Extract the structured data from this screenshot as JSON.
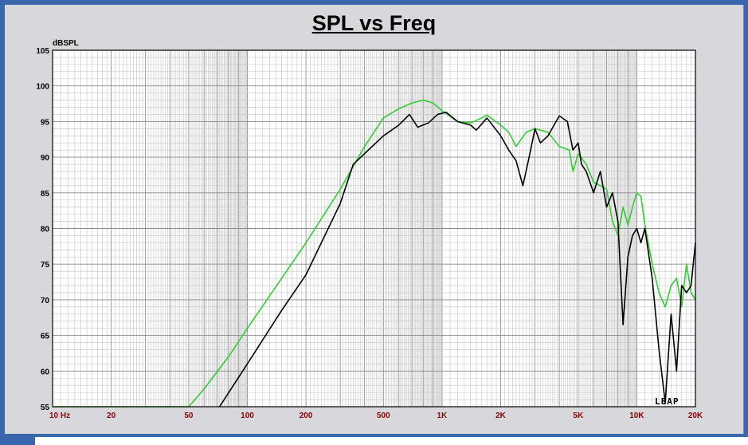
{
  "chart_data": {
    "type": "line",
    "title": "SPL vs Freq",
    "ylabel": "dBSPL",
    "xlabel": "",
    "x_scale": "log",
    "xlim": [
      10,
      20000
    ],
    "ylim": [
      55,
      105
    ],
    "grid": true,
    "y_ticks": [
      "55",
      "60",
      "65",
      "70",
      "75",
      "80",
      "85",
      "90",
      "95",
      "100",
      "105"
    ],
    "x_ticks": [
      {
        "value": 10,
        "label": "10 Hz"
      },
      {
        "value": 20,
        "label": "20"
      },
      {
        "value": 50,
        "label": "50"
      },
      {
        "value": 100,
        "label": "100"
      },
      {
        "value": 200,
        "label": "200"
      },
      {
        "value": 500,
        "label": "500"
      },
      {
        "value": 1000,
        "label": "1K"
      },
      {
        "value": 2000,
        "label": "2K"
      },
      {
        "value": 5000,
        "label": "5K"
      },
      {
        "value": 10000,
        "label": "10K"
      },
      {
        "value": 20000,
        "label": "20K"
      }
    ],
    "series": [
      {
        "color": "#33cc33",
        "points": [
          [
            10,
            55
          ],
          [
            50,
            55
          ],
          [
            60,
            57.5
          ],
          [
            80,
            62
          ],
          [
            100,
            66
          ],
          [
            150,
            73
          ],
          [
            200,
            78
          ],
          [
            300,
            85.5
          ],
          [
            400,
            91.5
          ],
          [
            500,
            95.5
          ],
          [
            600,
            96.8
          ],
          [
            700,
            97.6
          ],
          [
            800,
            98
          ],
          [
            900,
            97.6
          ],
          [
            1000,
            96.5
          ],
          [
            1200,
            95
          ],
          [
            1400,
            94.8
          ],
          [
            1600,
            95.5
          ],
          [
            1700,
            95.9
          ],
          [
            2000,
            94.5
          ],
          [
            2200,
            93.5
          ],
          [
            2400,
            91.5
          ],
          [
            2700,
            93.5
          ],
          [
            3000,
            94
          ],
          [
            3500,
            93.5
          ],
          [
            4000,
            91.5
          ],
          [
            4500,
            91
          ],
          [
            4700,
            88
          ],
          [
            5000,
            90.5
          ],
          [
            5500,
            89
          ],
          [
            6000,
            86.5
          ],
          [
            6500,
            86
          ],
          [
            7000,
            85.5
          ],
          [
            7500,
            81
          ],
          [
            8000,
            79
          ],
          [
            8500,
            83
          ],
          [
            9000,
            80.5
          ],
          [
            9500,
            83
          ],
          [
            10000,
            85
          ],
          [
            10500,
            84.5
          ],
          [
            11000,
            80.5
          ],
          [
            12000,
            75
          ],
          [
            13000,
            71
          ],
          [
            14000,
            69
          ],
          [
            15000,
            72
          ],
          [
            16000,
            73
          ],
          [
            17000,
            69
          ],
          [
            18000,
            75
          ],
          [
            19000,
            71
          ],
          [
            20000,
            70
          ]
        ]
      },
      {
        "color": "#000000",
        "points": [
          [
            72,
            55
          ],
          [
            100,
            61
          ],
          [
            150,
            68.5
          ],
          [
            200,
            73.5
          ],
          [
            300,
            83.5
          ],
          [
            350,
            89
          ],
          [
            400,
            90.5
          ],
          [
            500,
            93
          ],
          [
            600,
            94.5
          ],
          [
            680,
            96
          ],
          [
            750,
            94.2
          ],
          [
            850,
            94.8
          ],
          [
            950,
            96
          ],
          [
            1050,
            96.3
          ],
          [
            1200,
            95
          ],
          [
            1400,
            94.5
          ],
          [
            1500,
            93.8
          ],
          [
            1700,
            95.5
          ],
          [
            2000,
            93
          ],
          [
            2200,
            91
          ],
          [
            2400,
            89.5
          ],
          [
            2600,
            86
          ],
          [
            2800,
            90
          ],
          [
            3000,
            94
          ],
          [
            3200,
            92
          ],
          [
            3500,
            93
          ],
          [
            4000,
            95.8
          ],
          [
            4400,
            95
          ],
          [
            4700,
            91
          ],
          [
            5000,
            92
          ],
          [
            5200,
            89
          ],
          [
            5500,
            88
          ],
          [
            6000,
            85
          ],
          [
            6500,
            88
          ],
          [
            7000,
            83
          ],
          [
            7500,
            85
          ],
          [
            8000,
            81
          ],
          [
            8500,
            66.5
          ],
          [
            9000,
            76
          ],
          [
            9500,
            79
          ],
          [
            10000,
            80
          ],
          [
            10500,
            78
          ],
          [
            11000,
            80
          ],
          [
            12000,
            73
          ],
          [
            13000,
            63
          ],
          [
            14000,
            55.5
          ],
          [
            15000,
            68
          ],
          [
            16000,
            60
          ],
          [
            17000,
            72
          ],
          [
            18000,
            71
          ],
          [
            19000,
            72
          ],
          [
            20000,
            78
          ]
        ]
      }
    ],
    "watermark": "LEAP"
  }
}
